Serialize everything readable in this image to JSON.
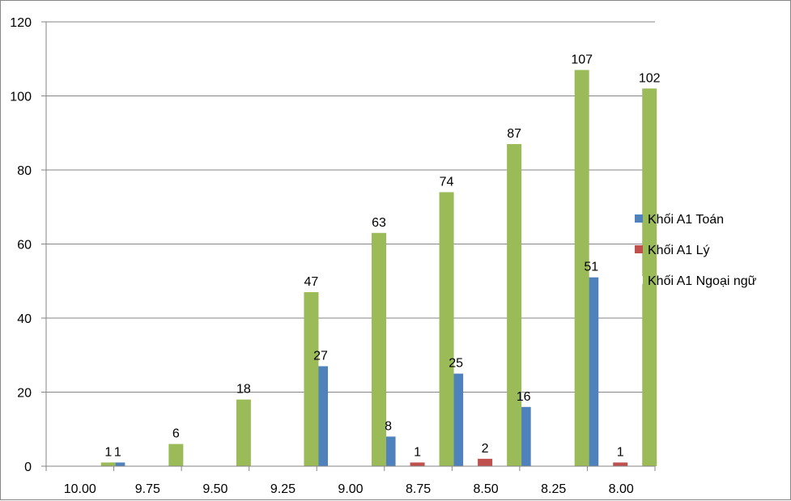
{
  "chart_data": {
    "type": "bar",
    "categories": [
      "10.00",
      "9.75",
      "9.50",
      "9.25",
      "9.00",
      "8.75",
      "8.50",
      "8.25",
      "8.00"
    ],
    "series": [
      {
        "name": "Khối A1 Toán",
        "color": "#4F81BD",
        "values": [
          0,
          1,
          0,
          0,
          27,
          8,
          25,
          16,
          51
        ]
      },
      {
        "name": "Khối A1 Lý",
        "color": "#C0504D",
        "values": [
          0,
          0,
          0,
          0,
          0,
          1,
          2,
          0,
          1
        ]
      },
      {
        "name": "Khối A1 Ngoại ngữ",
        "color": "#9BBB59",
        "values": [
          1,
          6,
          18,
          47,
          63,
          74,
          87,
          107,
          102
        ]
      }
    ],
    "ylim": [
      0,
      120
    ],
    "yticks": [
      0,
      20,
      40,
      60,
      80,
      100,
      120
    ],
    "grid": "horizontal",
    "legend_position": "right",
    "show_data_labels": true
  }
}
